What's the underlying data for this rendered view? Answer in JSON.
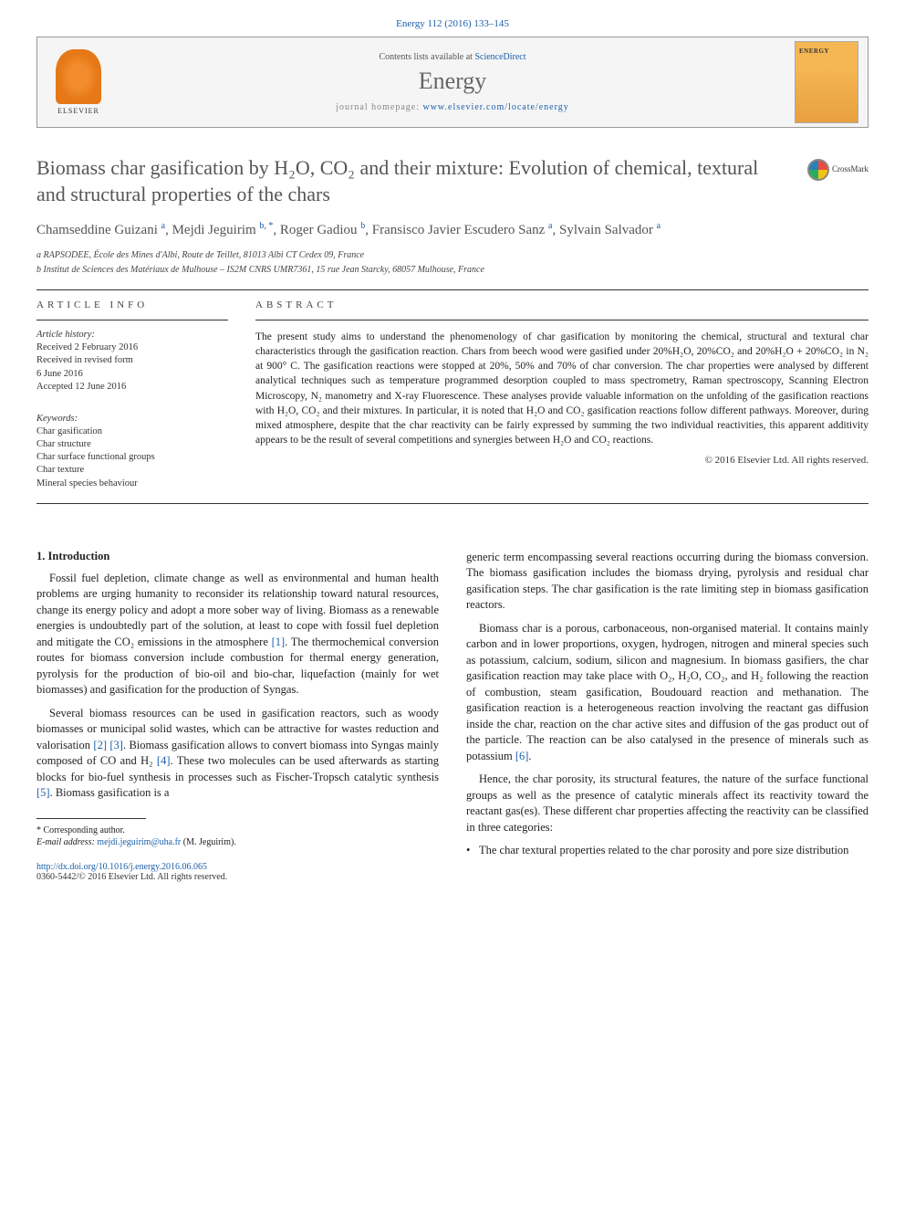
{
  "citation": "Energy 112 (2016) 133–145",
  "header": {
    "publisher": "ELSEVIER",
    "contents_prefix": "Contents lists available at ",
    "contents_link": "ScienceDirect",
    "journal": "Energy",
    "homepage_prefix": "journal homepage: ",
    "homepage_link": "www.elsevier.com/locate/energy"
  },
  "title": "Biomass char gasification by H₂O, CO₂ and their mixture: Evolution of chemical, textural and structural properties of the chars",
  "crossmark": "CrossMark",
  "authors_html": "Chamseddine Guizani <sup>a</sup>, Mejdi Jeguirim <sup>b, *</sup>, Roger Gadiou <sup>b</sup>, Fransisco Javier Escudero Sanz <sup>a</sup>, Sylvain Salvador <sup>a</sup>",
  "affiliations": [
    "a RAPSODEE, École des Mines d'Albi, Route de Teillet, 81013 Albi CT Cedex 09, France",
    "b Institut de Sciences des Matériaux de Mulhouse – IS2M CNRS UMR7361, 15 rue Jean Starcky, 68057 Mulhouse, France"
  ],
  "info": {
    "head": "ARTICLE INFO",
    "history_label": "Article history:",
    "history": [
      "Received 2 February 2016",
      "Received in revised form",
      "6 June 2016",
      "Accepted 12 June 2016"
    ],
    "keywords_label": "Keywords:",
    "keywords": [
      "Char gasification",
      "Char structure",
      "Char surface functional groups",
      "Char texture",
      "Mineral species behaviour"
    ]
  },
  "abstract": {
    "head": "ABSTRACT",
    "text": "The present study aims to understand the phenomenology of char gasification by monitoring the chemical, structural and textural char characteristics through the gasification reaction. Chars from beech wood were gasified under 20%H₂O, 20%CO₂ and 20%H₂O + 20%CO₂ in N₂ at 900° C. The gasification reactions were stopped at 20%, 50% and 70% of char conversion. The char properties were analysed by different analytical techniques such as temperature programmed desorption coupled to mass spectrometry, Raman spectroscopy, Scanning Electron Microscopy, N₂ manometry and X-ray Fluorescence. These analyses provide valuable information on the unfolding of the gasification reactions with H₂O, CO₂ and their mixtures. In particular, it is noted that H₂O and CO₂ gasification reactions follow different pathways. Moreover, during mixed atmosphere, despite that the char reactivity can be fairly expressed by summing the two individual reactivities, this apparent additivity appears to be the result of several competitions and synergies between H₂O and CO₂ reactions.",
    "copyright": "© 2016 Elsevier Ltd. All rights reserved."
  },
  "body": {
    "section1": "1. Introduction",
    "p1": "Fossil fuel depletion, climate change as well as environmental and human health problems are urging humanity to reconsider its relationship toward natural resources, change its energy policy and adopt a more sober way of living. Biomass as a renewable energies is undoubtedly part of the solution, at least to cope with fossil fuel depletion and mitigate the CO₂ emissions in the atmosphere [1]. The thermochemical conversion routes for biomass conversion include combustion for thermal energy generation, pyrolysis for the production of bio-oil and bio-char, liquefaction (mainly for wet biomasses) and gasification for the production of Syngas.",
    "p2": "Several biomass resources can be used in gasification reactors, such as woody biomasses or municipal solid wastes, which can be attractive for wastes reduction and valorisation [2] [3]. Biomass gasification allows to convert biomass into Syngas mainly composed of CO and H₂ [4]. These two molecules can be used afterwards as starting blocks for bio-fuel synthesis in processes such as Fischer-Tropsch catalytic synthesis [5]. Biomass gasification is a",
    "p3": "generic term encompassing several reactions occurring during the biomass conversion. The biomass gasification includes the biomass drying, pyrolysis and residual char gasification steps. The char gasification is the rate limiting step in biomass gasification reactors.",
    "p4": "Biomass char is a porous, carbonaceous, non-organised material. It contains mainly carbon and in lower proportions, oxygen, hydrogen, nitrogen and mineral species such as potassium, calcium, sodium, silicon and magnesium. In biomass gasifiers, the char gasification reaction may take place with O₂, H₂O, CO₂, and H₂ following the reaction of combustion, steam gasification, Boudouard reaction and methanation. The gasification reaction is a heterogeneous reaction involving the reactant gas diffusion inside the char, reaction on the char active sites and diffusion of the gas product out of the particle. The reaction can be also catalysed in the presence of minerals such as potassium [6].",
    "p5": "Hence, the char porosity, its structural features, the nature of the surface functional groups as well as the presence of catalytic minerals affect its reactivity toward the reactant gas(es). These different char properties affecting the reactivity can be classified in three categories:",
    "bullet1": "The char textural properties related to the char porosity and pore size distribution"
  },
  "footnote": {
    "corr": "* Corresponding author.",
    "email_label": "E-mail address:",
    "email": "mejdi.jeguirim@uha.fr",
    "email_person": "(M. Jeguirim)."
  },
  "doi": "http://dx.doi.org/10.1016/j.energy.2016.06.065",
  "issn": "0360-5442/© 2016 Elsevier Ltd. All rights reserved.",
  "refs": {
    "r1": "[1]",
    "r2": "[2]",
    "r3": "[3]",
    "r4": "[4]",
    "r5": "[5]",
    "r6": "[6]"
  }
}
